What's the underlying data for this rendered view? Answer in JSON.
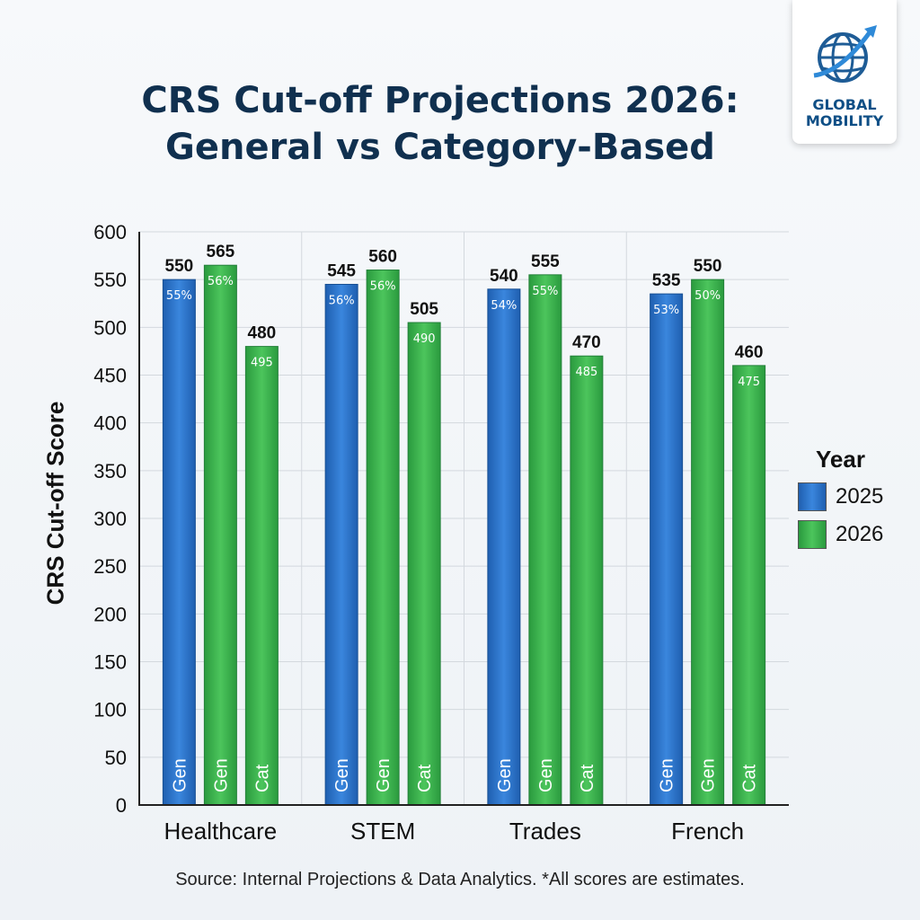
{
  "header": {
    "title_line1": "CRS Cut-off Projections 2026:",
    "title_line2": "General vs Category-Based"
  },
  "logo": {
    "line1": "GLOBAL",
    "line2": "MOBILITY"
  },
  "legend": {
    "title": "Year",
    "items": [
      {
        "label": "2025",
        "color": "#2f74c7"
      },
      {
        "label": "2026",
        "color": "#3fb34f"
      }
    ]
  },
  "footer": {
    "source": "Source: Internal Projections & Data Analytics. *All scores are estimates."
  },
  "chart_data": {
    "type": "bar",
    "ylabel": "CRS Cut-off Score",
    "ylim": [
      0,
      600
    ],
    "yticks": [
      0,
      50,
      100,
      150,
      200,
      250,
      300,
      350,
      400,
      450,
      500,
      550,
      600
    ],
    "grid": true,
    "legend_position": "right",
    "categories": [
      "Healthcare",
      "STEM",
      "Trades",
      "French"
    ],
    "groups": [
      {
        "category": "Healthcare",
        "bars": [
          {
            "label": "Gen",
            "year": "2025",
            "value": 550,
            "inner": "55%"
          },
          {
            "label": "Gen",
            "year": "2026",
            "value": 565,
            "inner": "56%"
          },
          {
            "label": "Cat",
            "year": "2026",
            "value": 480,
            "inner": "495"
          }
        ]
      },
      {
        "category": "STEM",
        "bars": [
          {
            "label": "Gen",
            "year": "2025",
            "value": 545,
            "inner": "56%"
          },
          {
            "label": "Gen",
            "year": "2026",
            "value": 560,
            "inner": "56%"
          },
          {
            "label": "Cat",
            "year": "2026",
            "value": 505,
            "inner": "490"
          }
        ]
      },
      {
        "category": "Trades",
        "bars": [
          {
            "label": "Gen",
            "year": "2025",
            "value": 540,
            "inner": "54%"
          },
          {
            "label": "Gen",
            "year": "2026",
            "value": 555,
            "inner": "55%"
          },
          {
            "label": "Cat",
            "year": "2026",
            "value": 470,
            "inner": "485"
          }
        ]
      },
      {
        "category": "French",
        "bars": [
          {
            "label": "Gen",
            "year": "2025",
            "value": 535,
            "inner": "53%"
          },
          {
            "label": "Gen",
            "year": "2026",
            "value": 550,
            "inner": "50%"
          },
          {
            "label": "Cat",
            "year": "2026",
            "value": 460,
            "inner": "475"
          }
        ]
      }
    ]
  }
}
